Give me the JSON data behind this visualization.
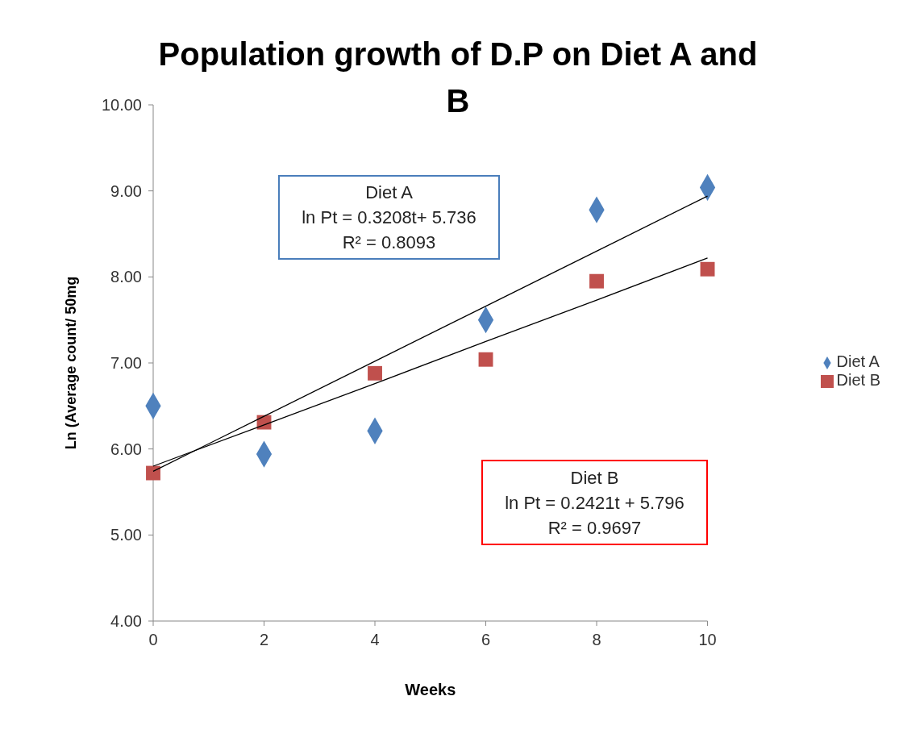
{
  "chart_data": {
    "type": "scatter",
    "title": "Population growth of D.P on Diet A and B",
    "xlabel": "Weeks",
    "ylabel": "Ln (Average count/ 50mg",
    "x": [
      0,
      2,
      4,
      6,
      8,
      10
    ],
    "series": [
      {
        "name": "Diet A",
        "color": "#4f81bd",
        "marker": "diamond",
        "values": [
          6.5,
          5.94,
          6.21,
          7.5,
          8.78,
          9.04
        ]
      },
      {
        "name": "Diet B",
        "color": "#c0504d",
        "marker": "square",
        "values": [
          5.72,
          6.31,
          6.88,
          7.04,
          7.95,
          8.09
        ]
      },
      {
        "type": "line",
        "color": "#000000",
        "marker": "none",
        "values": [
          5.74,
          6.38,
          7.02,
          7.66,
          8.3,
          8.94
        ]
      },
      {
        "type": "line",
        "color": "#000000",
        "marker": "none",
        "values": [
          5.8,
          6.28,
          6.76,
          7.25,
          7.73,
          8.22
        ]
      }
    ],
    "annotations": [
      "Diet A\nln Pt = 0.3208t+ 5.736\nR² = 0.8093",
      "Diet B\nln Pt = 0.2421t + 5.796\nR² = 0.9697"
    ],
    "xlim": [
      0,
      10
    ],
    "xticks": [
      0,
      2,
      4,
      6,
      8,
      10
    ],
    "ylim": [
      4,
      10
    ],
    "yticks": [
      {
        "value": 4,
        "label": "4.00"
      },
      {
        "value": 5,
        "label": "5.00"
      },
      {
        "value": 6,
        "label": "6.00"
      },
      {
        "value": 7,
        "label": "7.00"
      },
      {
        "value": 8,
        "label": "8.00"
      },
      {
        "value": 9,
        "label": "9.00"
      },
      {
        "value": 10,
        "label": "10.00"
      }
    ],
    "grid": false,
    "legend": "right"
  }
}
